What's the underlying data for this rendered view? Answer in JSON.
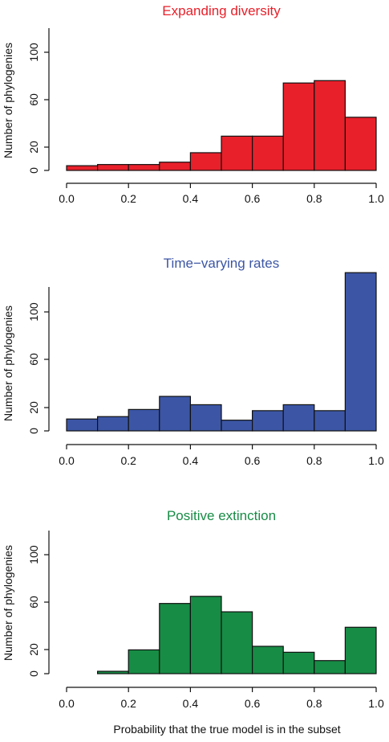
{
  "xlabel": "Probability that the true model is in the subset",
  "chart_data": [
    {
      "type": "bar",
      "title": "Expanding diversity",
      "color": "#e8202a",
      "title_color": "#e8202a",
      "ylabel": "Number of phylogenies",
      "xlim": [
        0,
        1
      ],
      "ylim": [
        0,
        120
      ],
      "x_ticks": [
        "0.0",
        "0.2",
        "0.4",
        "0.6",
        "0.8",
        "1.0"
      ],
      "y_ticks": [
        "0",
        "20",
        "60",
        "100"
      ],
      "bins": [
        [
          0.0,
          0.1
        ],
        [
          0.1,
          0.2
        ],
        [
          0.2,
          0.3
        ],
        [
          0.3,
          0.4
        ],
        [
          0.4,
          0.5
        ],
        [
          0.5,
          0.6
        ],
        [
          0.6,
          0.7
        ],
        [
          0.7,
          0.8
        ],
        [
          0.8,
          0.9
        ],
        [
          0.9,
          1.0
        ]
      ],
      "values": [
        4,
        5,
        5,
        7,
        15,
        29,
        29,
        74,
        76,
        45
      ]
    },
    {
      "type": "bar",
      "title": "Time−varying rates",
      "color": "#3c56a5",
      "title_color": "#3c56a5",
      "ylabel": "Number of phylogenies",
      "xlim": [
        0,
        1
      ],
      "ylim": [
        0,
        120
      ],
      "x_ticks": [
        "0.0",
        "0.2",
        "0.4",
        "0.6",
        "0.8",
        "1.0"
      ],
      "y_ticks": [
        "0",
        "20",
        "60",
        "100"
      ],
      "bins": [
        [
          0.0,
          0.1
        ],
        [
          0.1,
          0.2
        ],
        [
          0.2,
          0.3
        ],
        [
          0.3,
          0.4
        ],
        [
          0.4,
          0.5
        ],
        [
          0.5,
          0.6
        ],
        [
          0.6,
          0.7
        ],
        [
          0.7,
          0.8
        ],
        [
          0.8,
          0.9
        ],
        [
          0.9,
          1.0
        ]
      ],
      "values": [
        10,
        12,
        18,
        29,
        22,
        9,
        17,
        22,
        17,
        133
      ]
    },
    {
      "type": "bar",
      "title": "Positive extinction",
      "color": "#178c45",
      "title_color": "#178c45",
      "ylabel": "Number of phylogenies",
      "xlim": [
        0,
        1
      ],
      "ylim": [
        0,
        120
      ],
      "x_ticks": [
        "0.0",
        "0.2",
        "0.4",
        "0.6",
        "0.8",
        "1.0"
      ],
      "y_ticks": [
        "0",
        "20",
        "60",
        "100"
      ],
      "bins": [
        [
          0.1,
          0.2
        ],
        [
          0.2,
          0.3
        ],
        [
          0.3,
          0.4
        ],
        [
          0.4,
          0.5
        ],
        [
          0.5,
          0.6
        ],
        [
          0.6,
          0.7
        ],
        [
          0.7,
          0.8
        ],
        [
          0.8,
          0.9
        ],
        [
          0.9,
          1.0
        ]
      ],
      "values": [
        2,
        20,
        59,
        65,
        52,
        23,
        18,
        11,
        39
      ]
    }
  ]
}
